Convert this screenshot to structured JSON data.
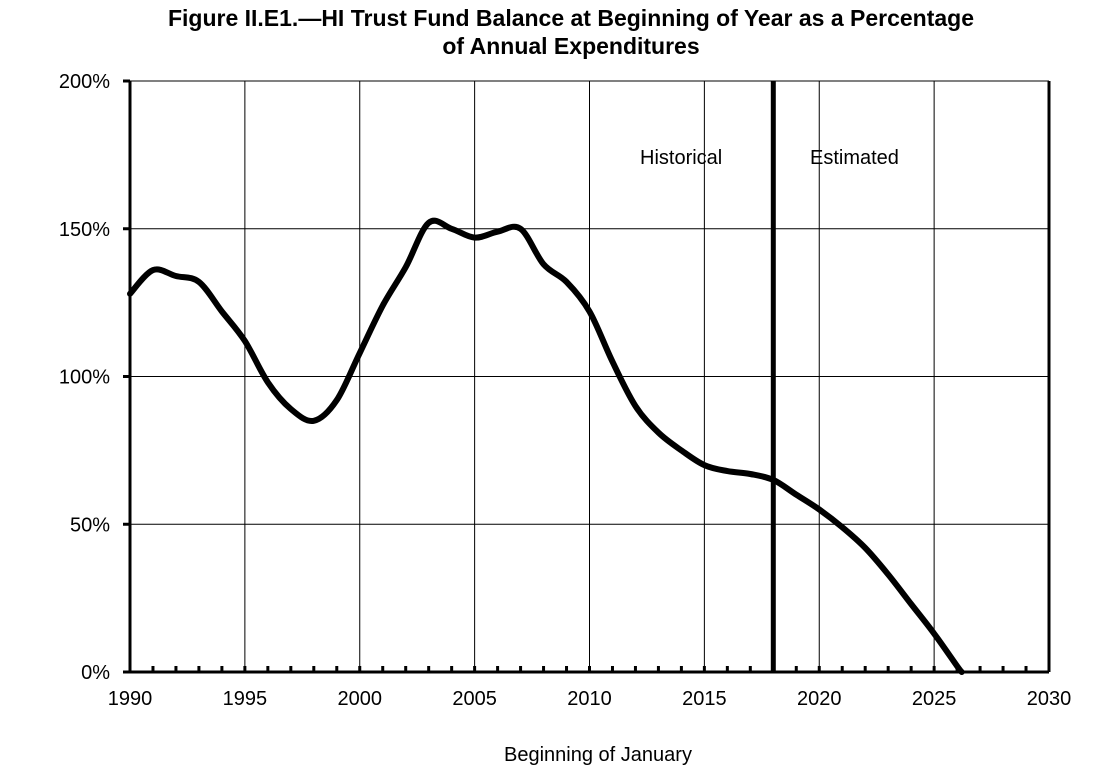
{
  "chart_data": {
    "type": "line",
    "title_line1": "Figure II.E1.—HI Trust Fund Balance at Beginning of Year as a Percentage",
    "title_line2": "of Annual Expenditures",
    "xlabel": "Beginning of January",
    "ylabel": "",
    "xlim": [
      1990,
      2030
    ],
    "ylim": [
      0,
      200
    ],
    "x_ticks": [
      "1990",
      "1995",
      "2000",
      "2005",
      "2010",
      "2015",
      "2020",
      "2025",
      "2030"
    ],
    "y_ticks": [
      "0%",
      "50%",
      "100%",
      "150%",
      "200%"
    ],
    "x_tick_values": [
      1990,
      1995,
      2000,
      2005,
      2010,
      2015,
      2020,
      2025,
      2030
    ],
    "y_tick_values": [
      0,
      50,
      100,
      150,
      200
    ],
    "grid": true,
    "divider_year": 2018,
    "annotations": {
      "historical": "Historical",
      "estimated": "Estimated"
    },
    "series": [
      {
        "x": [
          1990,
          1991,
          1992,
          1993,
          1994,
          1995,
          1996,
          1997,
          1998,
          1999,
          2000,
          2001,
          2002,
          2003,
          2004,
          2005,
          2006,
          2007,
          2008,
          2009,
          2010,
          2011,
          2012,
          2013,
          2014,
          2015,
          2016,
          2017,
          2018,
          2019,
          2020,
          2021,
          2022,
          2023,
          2024,
          2025,
          2026,
          2026.2
        ],
        "values": [
          128,
          136,
          134,
          132,
          122,
          112,
          98,
          89,
          85,
          92,
          108,
          124,
          137,
          152,
          150,
          147,
          149,
          150,
          138,
          132,
          122,
          105,
          90,
          81,
          75,
          70,
          68,
          67,
          65,
          60,
          55,
          49,
          42,
          33,
          23,
          13,
          2,
          0
        ]
      }
    ]
  }
}
